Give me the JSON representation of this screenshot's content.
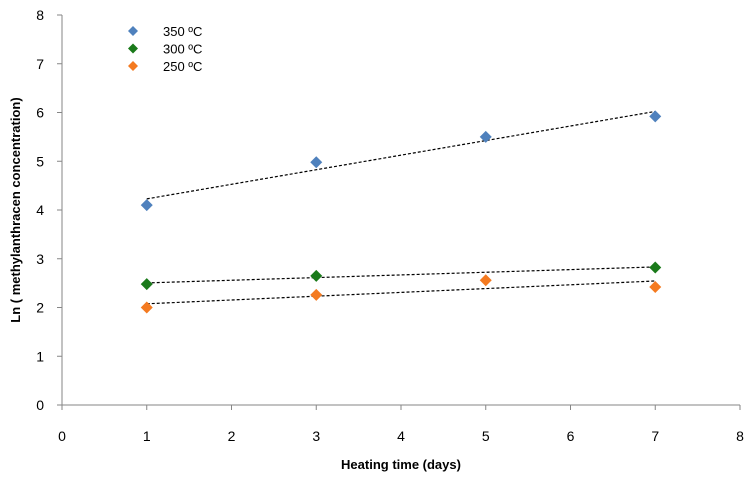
{
  "chart_data": {
    "type": "scatter",
    "xlabel": "Heating time (days)",
    "ylabel": "Ln ( methylanthracen concentration)",
    "xlim": [
      0,
      8
    ],
    "ylim": [
      0,
      8
    ],
    "xticks": [
      0,
      1,
      2,
      3,
      4,
      5,
      6,
      7,
      8
    ],
    "yticks": [
      0,
      1,
      2,
      3,
      4,
      5,
      6,
      7,
      8
    ],
    "grid": false,
    "legend_position": "top-left",
    "trendlines": "linear, dashed",
    "series": [
      {
        "name": "350 ºC",
        "color": "#4f81bd",
        "x": [
          1,
          3,
          5,
          7
        ],
        "y": [
          4.1,
          4.98,
          5.5,
          5.92
        ]
      },
      {
        "name": "300 ºC",
        "color": "#1a7a1a",
        "x": [
          1,
          3,
          5,
          7
        ],
        "y": [
          2.48,
          2.65,
          null,
          2.82
        ]
      },
      {
        "name": "250 ºC",
        "color": "#f47a20",
        "x": [
          1,
          3,
          5,
          7
        ],
        "y": [
          2.0,
          2.26,
          2.56,
          2.42
        ]
      }
    ]
  }
}
